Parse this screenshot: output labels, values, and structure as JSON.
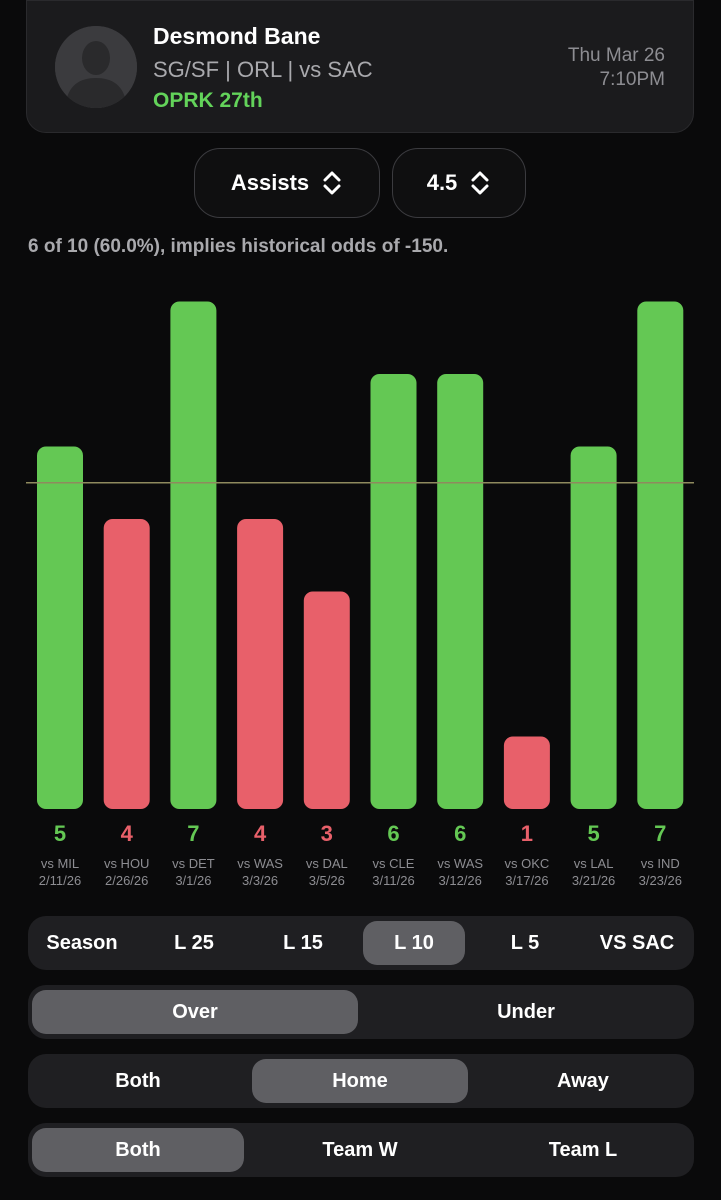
{
  "player": {
    "name": "Desmond Bane",
    "meta": "SG/SF | ORL | vs SAC",
    "oprk": "OPRK 27th",
    "date": "Thu Mar 26",
    "time": "7:10PM"
  },
  "selectors": {
    "stat": "Assists",
    "line": "4.5"
  },
  "summary": "6 of 10 (60.0%), implies historical odds of -150.",
  "colors": {
    "over": "#64c854",
    "under": "#e8606a",
    "line": "#8f8a5e",
    "accent_green": "#63d35a"
  },
  "chart_data": {
    "type": "bar",
    "line": 4.5,
    "ylim": [
      0,
      7
    ],
    "categories": [
      "vs MIL",
      "vs HOU",
      "vs DET",
      "vs WAS",
      "vs DAL",
      "vs CLE",
      "vs WAS",
      "vs OKC",
      "vs LAL",
      "vs IND"
    ],
    "dates": [
      "2/11/26",
      "2/26/26",
      "3/1/26",
      "3/3/26",
      "3/5/26",
      "3/11/26",
      "3/12/26",
      "3/17/26",
      "3/21/26",
      "3/23/26"
    ],
    "values": [
      5,
      4,
      7,
      4,
      3,
      6,
      6,
      1,
      5,
      7
    ]
  },
  "filters": {
    "range": {
      "options": [
        "Season",
        "L 25",
        "L 15",
        "L 10",
        "L 5",
        "VS SAC"
      ],
      "selected": 3
    },
    "side": {
      "options": [
        "Over",
        "Under"
      ],
      "selected": 0
    },
    "location": {
      "options": [
        "Both",
        "Home",
        "Away"
      ],
      "selected": 1
    },
    "result": {
      "options": [
        "Both",
        "Team W",
        "Team L"
      ],
      "selected": 0
    }
  }
}
